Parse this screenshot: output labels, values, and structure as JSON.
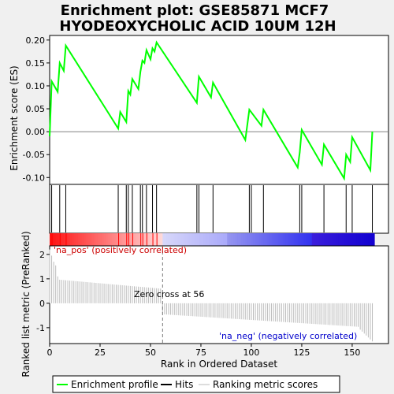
{
  "chart_data": {
    "type": "line",
    "title_line1": "Enrichment plot: GSE85871 MCF7",
    "title_line2": "HYODEOXYCHOLIC ACID 10UM 12H",
    "es_panel": {
      "ylabel": "Enrichment score (ES)",
      "ylim": [
        -0.115,
        0.21
      ],
      "yticks": [
        -0.1,
        -0.05,
        0.0,
        0.05,
        0.1,
        0.15,
        0.2
      ],
      "ytick_labels": [
        "-0.10",
        "-0.05",
        "0.00",
        "0.05",
        "0.10",
        "0.15",
        "0.20"
      ],
      "color": "#00ff00",
      "x": [
        0,
        1,
        4,
        5,
        7,
        8,
        34,
        35,
        38,
        39,
        40,
        41,
        44,
        45,
        46,
        47,
        48,
        50,
        51,
        52,
        53,
        73,
        74,
        80,
        81,
        97,
        99,
        105,
        106,
        123,
        124,
        125,
        135,
        136,
        146,
        147,
        149,
        150,
        159,
        160
      ],
      "y": [
        -0.01,
        0.11,
        0.087,
        0.15,
        0.133,
        0.188,
        0.007,
        0.043,
        0.021,
        0.089,
        0.081,
        0.115,
        0.093,
        0.131,
        0.155,
        0.15,
        0.178,
        0.158,
        0.182,
        0.175,
        0.195,
        0.063,
        0.12,
        0.075,
        0.107,
        -0.018,
        0.048,
        0.013,
        0.048,
        -0.078,
        -0.045,
        0.004,
        -0.072,
        -0.028,
        -0.102,
        -0.05,
        -0.066,
        -0.012,
        -0.084,
        0.0
      ]
    },
    "hits": [
      1,
      5,
      8,
      34,
      38,
      39,
      41,
      45,
      46,
      48,
      51,
      53,
      73,
      74,
      81,
      99,
      100,
      106,
      124,
      125,
      136,
      147,
      150,
      160
    ],
    "rank_panel": {
      "ylabel": "Ranked list metric (PreRanked)",
      "xlabel": "Rank in Dataset Ordered",
      "xlabel_display": "Rank in Ordered Dataset",
      "ylim": [
        -1.65,
        2.35
      ],
      "yticks": [
        -1,
        0,
        1,
        2
      ],
      "ytick_labels": [
        "-1",
        "0",
        "1",
        "2"
      ],
      "pos_label": "'na_pos' (positively correlated)",
      "neg_label": "'na_neg' (negatively correlated)",
      "zero_cross_label": "Zero cross at 56",
      "zero_cross": 56,
      "pos_color": "#cc0000",
      "neg_color": "#0000cc"
    },
    "xlim": [
      0,
      168
    ],
    "xticks": [
      0,
      25,
      50,
      75,
      100,
      125,
      150
    ],
    "xtick_labels": [
      "0",
      "25",
      "50",
      "75",
      "100",
      "125",
      "150"
    ],
    "n_ranks": 161,
    "legend": {
      "items": [
        "Enrichment profile",
        "Hits",
        "Ranking metric scores"
      ],
      "colors": [
        "#00ff00",
        "#000000",
        "#bbbbbb"
      ]
    }
  }
}
